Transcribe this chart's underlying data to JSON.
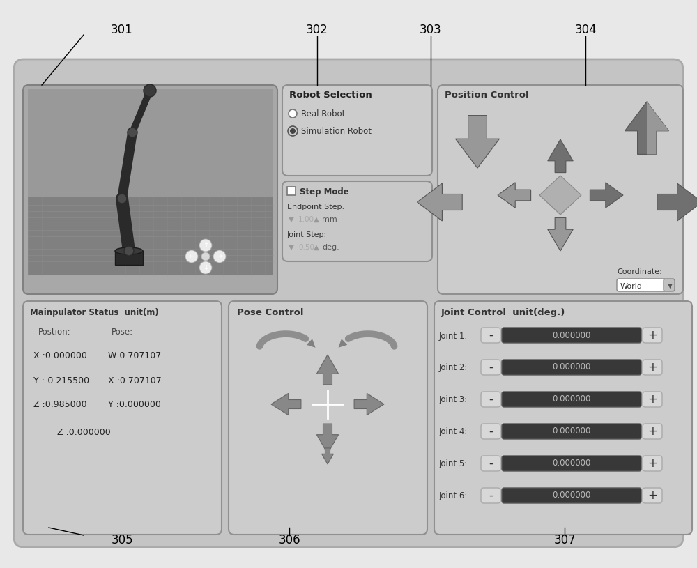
{
  "bg_color": "#d0d0d0",
  "outer_bg": "#e8e8e8",
  "panel_color": "#c8c8c8",
  "panel_edge": "#909090",
  "dark_field": "#3a3a3a",
  "robot_selection_title": "Robot Selection",
  "real_robot": "Real Robot",
  "simulation_robot": "Simulation Robot",
  "step_mode": "Step Mode",
  "endpoint_step": "Endpoint Step:",
  "endpoint_val": "1.00",
  "endpoint_unit": "mm",
  "joint_step": "Joint Step:",
  "joint_val": "0.50",
  "joint_unit": "deg.",
  "position_control_title": "Position Control",
  "coordinate_label": "Coordinate:",
  "coordinate_val": "World",
  "manipulator_title": "Mainpulator Status  unit(m)",
  "postion_label": "Postion:",
  "pose_label": "Pose:",
  "x_pos": "X :0.000000",
  "w_pose": "W 0.707107",
  "y_pos": "Y :-0.215500",
  "x_pose": "X :0.707107",
  "z_pos": "Z :0.985000",
  "y_pose": "Y :0.000000",
  "z_pose": "Z :0.000000",
  "pose_control_title": "Pose Control",
  "joint_control_title": "Joint Control  unit(deg.)",
  "joints": [
    "Joint 1:",
    "Joint 2:",
    "Joint 3:",
    "Joint 4:",
    "Joint 5:",
    "Joint 6:"
  ],
  "joint_values": [
    "0.000000",
    "0.000000",
    "0.000000",
    "0.000000",
    "0.000000",
    "0.000000"
  ],
  "label_301": "301",
  "label_302": "302",
  "label_303": "303",
  "label_304": "304",
  "label_305": "305",
  "label_306": "306",
  "label_307": "307"
}
